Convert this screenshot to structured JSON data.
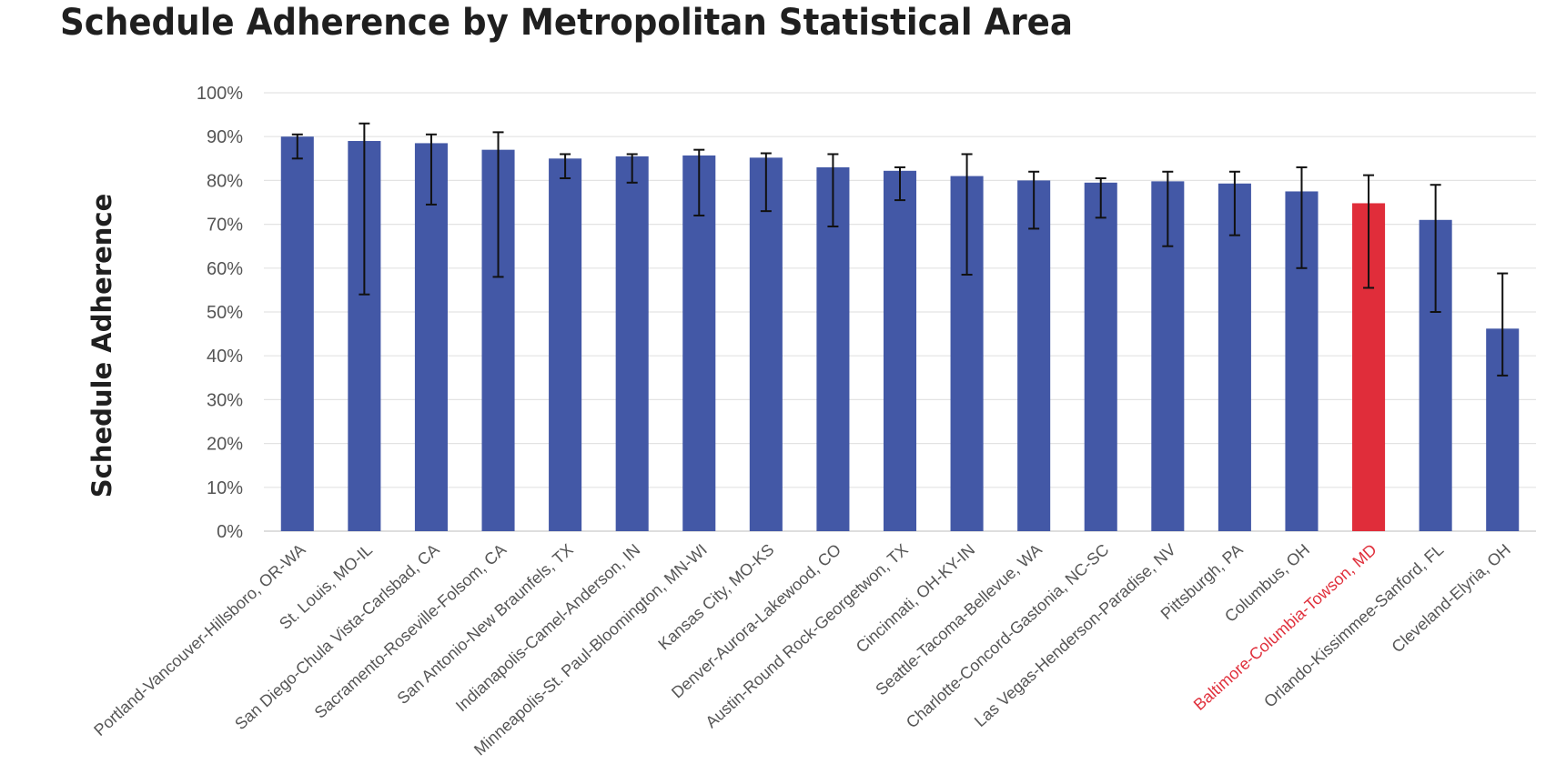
{
  "chart_data": {
    "type": "bar",
    "title": "Schedule Adherence by Metropolitan Statistical Area",
    "ylabel": "Schedule Adherence",
    "xlabel": "",
    "ylim": [
      0,
      100
    ],
    "yticks": [
      "0%",
      "10%",
      "20%",
      "30%",
      "40%",
      "50%",
      "60%",
      "70%",
      "80%",
      "90%",
      "100%"
    ],
    "grid": true,
    "legend": "none",
    "colors": {
      "bar": "#4358a6",
      "highlight": "#e02d3a",
      "grid": "#e3e3e3",
      "error_bar": "#111111"
    },
    "categories": [
      "Portland-Vancouver-Hillsboro, OR-WA",
      "St. Louis, MO-IL",
      "San Diego-Chula Vista-Carlsbad, CA",
      "Sacramento-Roseville-Folsom, CA",
      "San Antonio-New Braunfels, TX",
      "Indianapolis-Camel-Anderson, IN",
      "Minneapolis-St. Paul-Bloomington, MN-WI",
      "Kansas City, MO-KS",
      "Denver-Aurora-Lakewood, CO",
      "Austin-Round Rock-Georgetwon, TX",
      "Cincinnati, OH-KY-IN",
      "Seattle-Tacoma-Bellevue, WA",
      "Charlotte-Concord-Gastonia, NC-SC",
      "Las Vegas-Henderson-Paradise, NV",
      "Pittsburgh, PA",
      "Columbus, OH",
      "Baltimore-Columbia-Towson, MD",
      "Orlando-Kissimmee-Sanford, FL",
      "Cleveland-Elyria, OH"
    ],
    "values": [
      90,
      89,
      88.5,
      87,
      85,
      85.5,
      85.7,
      85.2,
      83,
      82.2,
      81,
      80,
      79.5,
      79.8,
      79.3,
      77.5,
      74.8,
      71,
      46.2
    ],
    "error_low": [
      85,
      54,
      74.5,
      58,
      80.5,
      79.5,
      72,
      73,
      69.5,
      75.5,
      58.5,
      69,
      71.5,
      65,
      67.5,
      60,
      55.5,
      50,
      35.5
    ],
    "error_high": [
      90.5,
      93,
      90.5,
      91,
      86,
      86,
      87,
      86.2,
      86,
      83,
      86,
      82,
      80.5,
      82,
      82,
      83,
      81.2,
      79,
      58.8
    ],
    "highlight_index": 16
  }
}
